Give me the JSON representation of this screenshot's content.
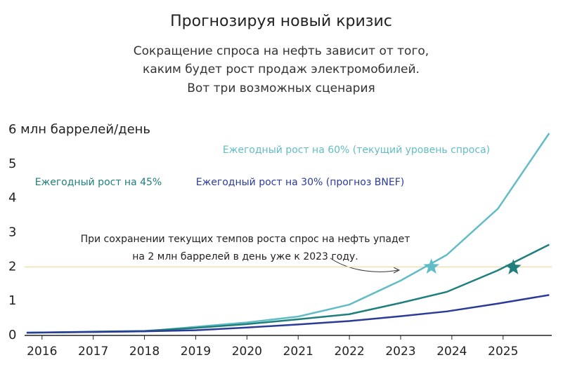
{
  "chart_data": {
    "type": "line",
    "title": "Прогнозируя новый кризис",
    "subtitle": [
      "Сокращение спроса на нефть зависит от того,",
      "каким будет рост продаж электромобилей.",
      "Вот три возможных сценария"
    ],
    "x": [
      2015.7,
      2017,
      2018,
      2019,
      2020,
      2021,
      2022,
      2023,
      2023.9,
      2024.9,
      2025.9
    ],
    "series": [
      {
        "name": "Ежегодный рост на 60% (текущий уровень спроса)",
        "color": "#62bcc6",
        "values": [
          0.08,
          0.1,
          0.12,
          0.25,
          0.38,
          0.55,
          0.9,
          1.6,
          2.35,
          3.7,
          5.9
        ]
      },
      {
        "name": "Ежегодный рост на 45%",
        "color": "#1f7f7c",
        "values": [
          0.08,
          0.11,
          0.13,
          0.22,
          0.33,
          0.47,
          0.62,
          0.95,
          1.27,
          1.9,
          2.65
        ]
      },
      {
        "name": "Ежегодный рост на 30% (прогноз BNEF)",
        "color": "#2b3b98",
        "values": [
          0.08,
          0.1,
          0.12,
          0.15,
          0.23,
          0.32,
          0.42,
          0.56,
          0.7,
          0.93,
          1.18
        ]
      }
    ],
    "markers": [
      {
        "x": 2023.6,
        "y": 2,
        "color": "#62bcc6"
      },
      {
        "x": 2025.2,
        "y": 1.98,
        "color": "#1f7f7c"
      }
    ],
    "reference_line": {
      "value": 2,
      "color": "#f3dcb4"
    },
    "annotation": [
      "При сохранении текущих темпов роста спрос на нефть упадет",
      "на 2 млн баррелей в день уже к 2023 году."
    ],
    "xlim": [
      2015.66,
      2025.95
    ],
    "xticks": [
      2016,
      2017,
      2018,
      2019,
      2020,
      2021,
      2022,
      2023,
      2024,
      2025
    ],
    "ylim": [
      0,
      6
    ],
    "yticks": [
      0,
      1,
      2,
      3,
      4,
      5,
      {
        "value": 6,
        "label": "6 млн баррелей/день"
      }
    ],
    "grid": false
  }
}
